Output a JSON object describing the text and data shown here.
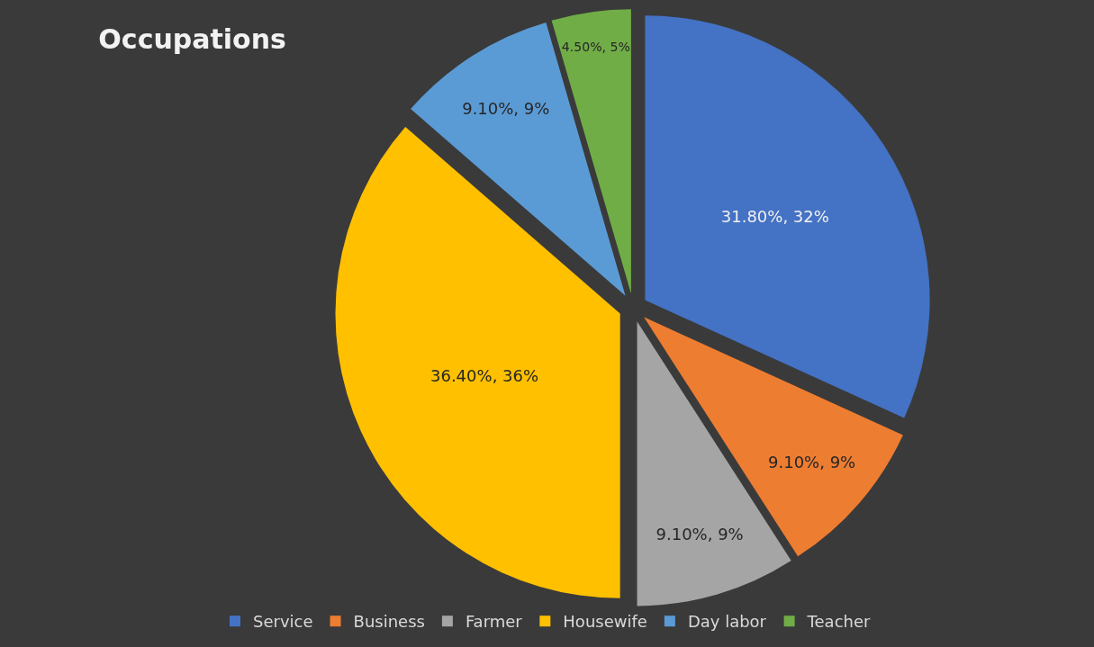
{
  "chart_data": {
    "type": "pie",
    "title": "Occupations",
    "categories": [
      "Service",
      "Business",
      "Farmer",
      "Housewife",
      "Day labor",
      "Teacher"
    ],
    "values": [
      31.8,
      9.1,
      9.1,
      36.4,
      9.1,
      4.5
    ],
    "colors": [
      "#4472c4",
      "#ed7d31",
      "#a5a5a5",
      "#ffc000",
      "#5b9bd5",
      "#70ad47"
    ],
    "value_labels": [
      "31.80%, 32%",
      "9.10%, 9%",
      "9.10%, 9%",
      "36.40%, 36%",
      "9.10%, 9%",
      "4.50%, 5%"
    ],
    "legend": "bottom"
  }
}
